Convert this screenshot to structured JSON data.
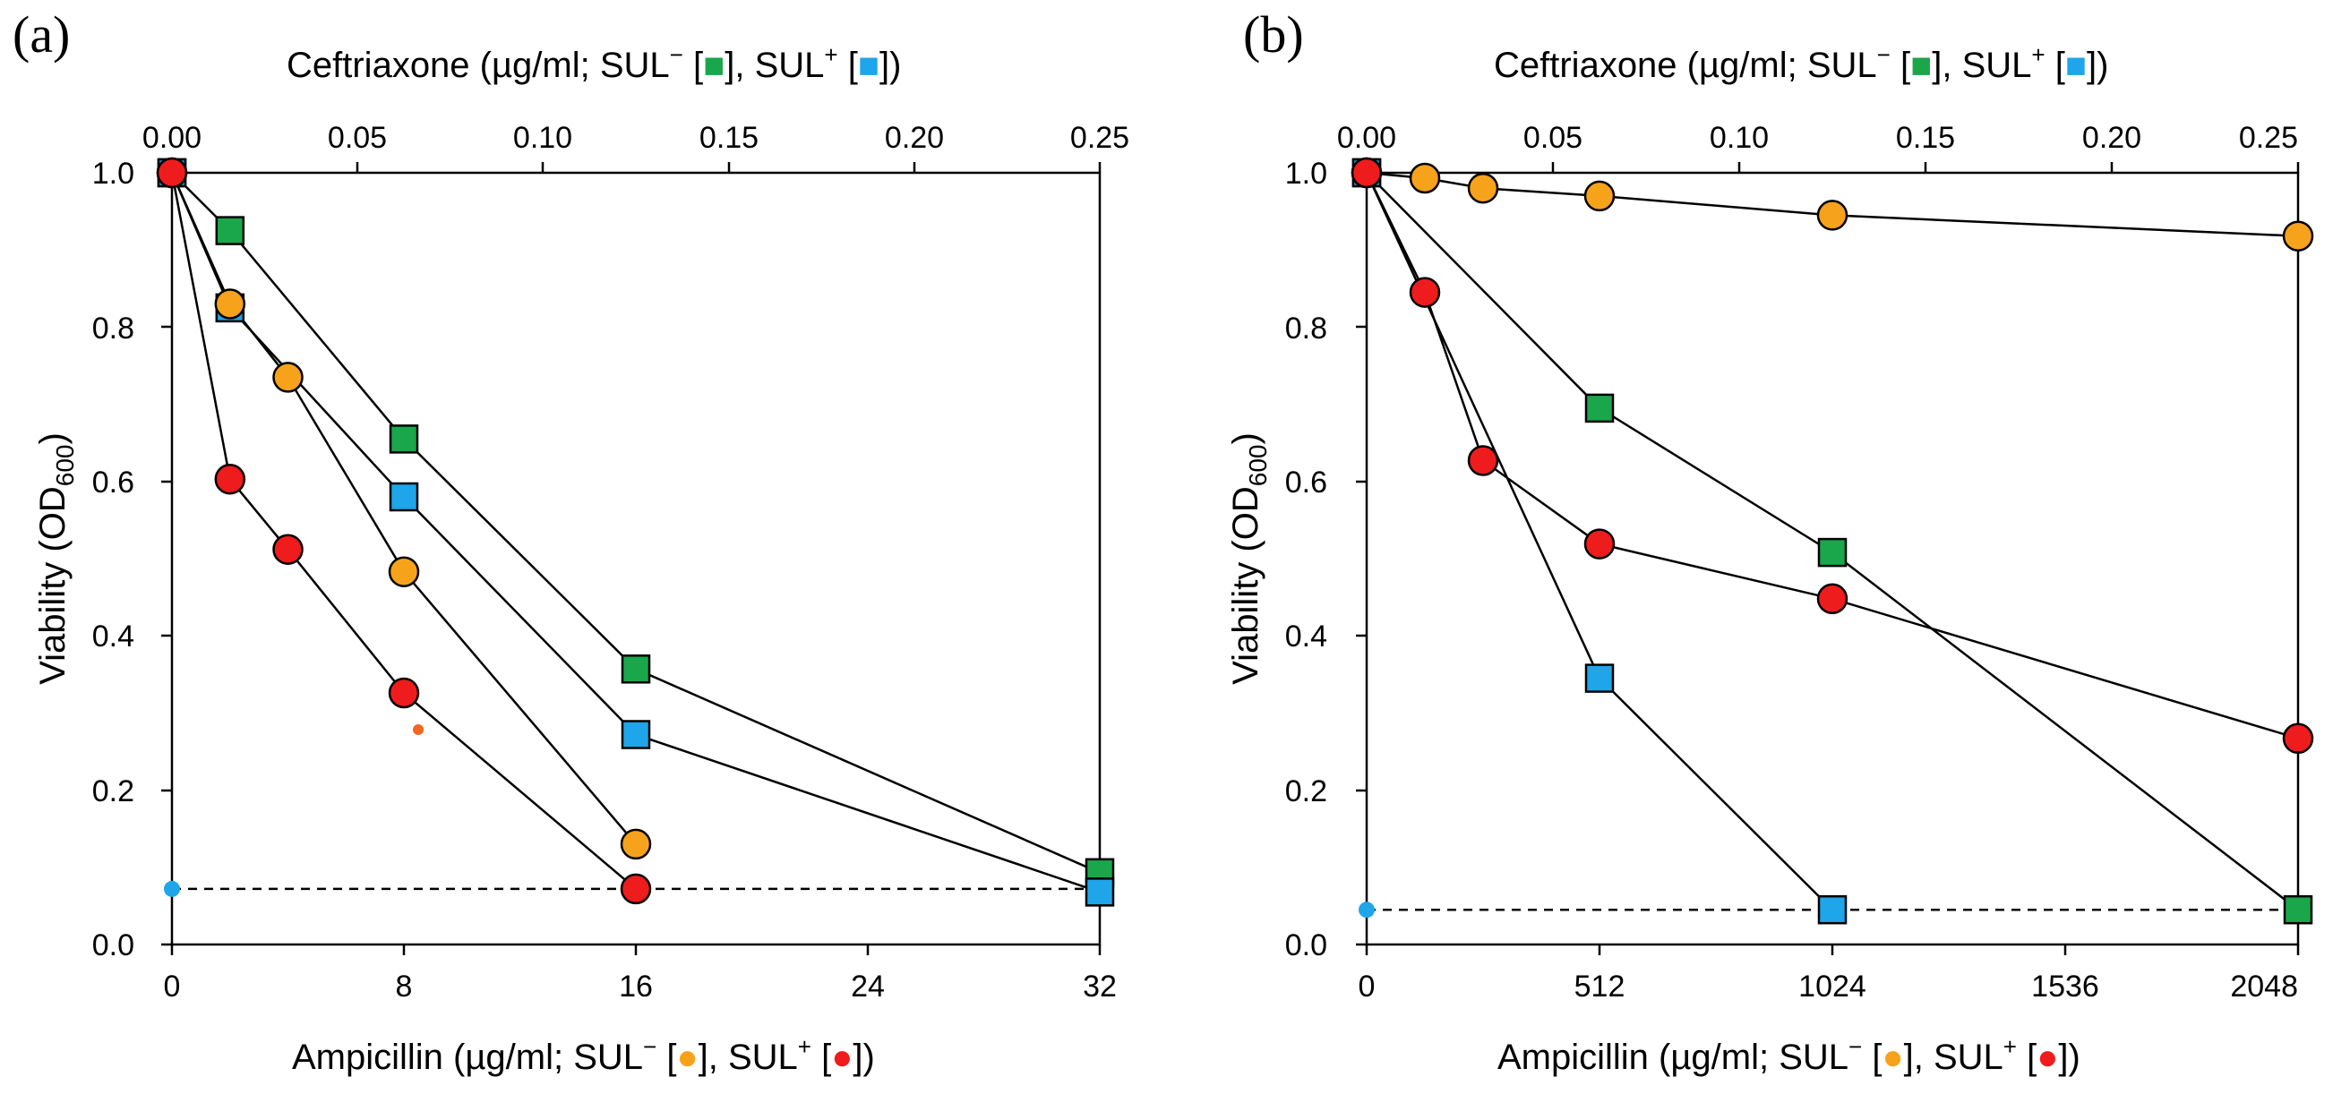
{
  "chart_data": [
    {
      "type": "line",
      "panel_label": "(a)",
      "ylabel": "Viability (OD",
      "ylabel_sub": "600",
      "ylabel_end": ")",
      "ylim": [
        0,
        1.0
      ],
      "yticks": [
        "0.0",
        "0.2",
        "0.4",
        "0.6",
        "0.8",
        "1.0"
      ],
      "x_bottom": {
        "label_prefix": "Ampicillin (µg/ml; SUL",
        "label_mid": " [",
        "label_mid2": "], SUL",
        "label_end": " [",
        "label_close": "])",
        "sup_minus": "−",
        "sup_plus": "+",
        "lim": [
          0,
          32
        ],
        "ticks": [
          "0",
          "8",
          "16",
          "24",
          "32"
        ]
      },
      "x_top": {
        "label_prefix": "Ceftriaxone (µg/ml; SUL",
        "label_mid": " [",
        "label_mid2": "], SUL",
        "label_end": " [",
        "label_close": "])",
        "sup_minus": "−",
        "sup_plus": "+",
        "lim": [
          0,
          0.25
        ],
        "ticks": [
          "0.00",
          "0.05",
          "0.10",
          "0.15",
          "0.20",
          "0.25"
        ]
      },
      "baseline": 0.072,
      "series": [
        {
          "name": "Ceftriaxone SUL−",
          "axis": "top",
          "marker": "square",
          "color": "#1aa64a",
          "x": [
            0,
            0.015625,
            0.0625,
            0.125,
            0.25
          ],
          "y": [
            1.0,
            0.925,
            0.655,
            0.357,
            0.093
          ]
        },
        {
          "name": "Ceftriaxone SUL+",
          "axis": "top",
          "marker": "square",
          "color": "#1ea5ea",
          "x": [
            0,
            0.015625,
            0.0625,
            0.125,
            0.25
          ],
          "y": [
            1.0,
            0.825,
            0.58,
            0.272,
            0.068
          ]
        },
        {
          "name": "Ampicillin SUL−",
          "axis": "bottom",
          "marker": "circle",
          "color": "#f7a21b",
          "x": [
            0,
            2,
            4,
            8,
            16
          ],
          "y": [
            1.0,
            0.83,
            0.735,
            0.483,
            0.13
          ]
        },
        {
          "name": "Ampicillin SUL+",
          "axis": "bottom",
          "marker": "circle",
          "color": "#ee1c1c",
          "x": [
            0,
            2,
            4,
            8,
            16
          ],
          "y": [
            1.0,
            0.603,
            0.512,
            0.326,
            0.072
          ]
        }
      ]
    },
    {
      "type": "line",
      "panel_label": "(b)",
      "ylabel": "Viability (OD",
      "ylabel_sub": "600",
      "ylabel_end": ")",
      "ylim": [
        0,
        1.0
      ],
      "yticks": [
        "0.0",
        "0.2",
        "0.4",
        "0.6",
        "0.8",
        "1.0"
      ],
      "x_bottom": {
        "label_prefix": "Ampicillin (µg/ml; SUL",
        "label_mid": " [",
        "label_mid2": "], SUL",
        "label_end": " [",
        "label_close": "])",
        "sup_minus": "−",
        "sup_plus": "+",
        "lim": [
          0,
          2048
        ],
        "ticks": [
          "0",
          "512",
          "1024",
          "1536",
          "2048"
        ]
      },
      "x_top": {
        "label_prefix": "Ceftriaxone (µg/ml; SUL",
        "label_mid": " [",
        "label_mid2": "], SUL",
        "label_end": " [",
        "label_close": "])",
        "sup_minus": "−",
        "sup_plus": "+",
        "lim": [
          0,
          0.25
        ],
        "ticks": [
          "0.00",
          "0.05",
          "0.10",
          "0.15",
          "0.20",
          "0.25"
        ]
      },
      "baseline": 0.045,
      "series": [
        {
          "name": "Ceftriaxone SUL−",
          "axis": "top",
          "marker": "square",
          "color": "#1aa64a",
          "x": [
            0,
            0.0625,
            0.125,
            0.25
          ],
          "y": [
            1.0,
            0.695,
            0.508,
            0.045
          ]
        },
        {
          "name": "Ceftriaxone SUL+",
          "axis": "top",
          "marker": "square",
          "color": "#1ea5ea",
          "x": [
            0,
            0.0625,
            0.125
          ],
          "y": [
            1.0,
            0.345,
            0.045
          ]
        },
        {
          "name": "Ampicillin SUL−",
          "axis": "bottom",
          "marker": "circle",
          "color": "#f7a21b",
          "x": [
            0,
            128,
            256,
            512,
            1024,
            2048
          ],
          "y": [
            1.0,
            0.993,
            0.98,
            0.97,
            0.945,
            0.918
          ]
        },
        {
          "name": "Ampicillin SUL+",
          "axis": "bottom",
          "marker": "circle",
          "color": "#ee1c1c",
          "x": [
            0,
            128,
            256,
            512,
            1024,
            2048
          ],
          "y": [
            1.0,
            0.845,
            0.627,
            0.519,
            0.448,
            0.267
          ]
        }
      ]
    }
  ],
  "colors": {
    "baseline_dot": "#1ea5ea",
    "stray_dot": "#f26522"
  }
}
